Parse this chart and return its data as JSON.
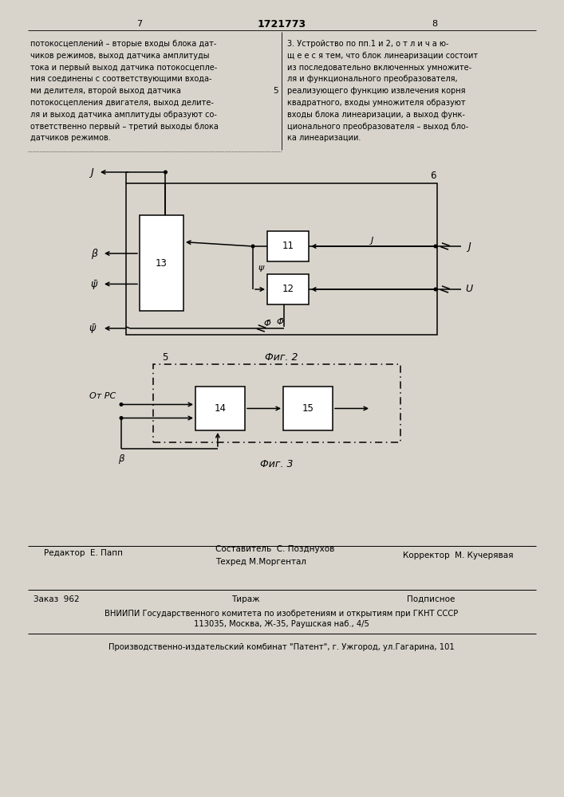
{
  "page_left": "7",
  "page_center": "1721773",
  "page_right": "8",
  "text_left": "потокосцеплений – вторые входы блока дат-\nчиков режимов, выход датчика амплитуды\nтока и первый выход датчика потокосцепле-\nния соединены с соответствующими входа-\nми делителя, второй выход датчика 5\nпотокосцепления двигателя, выход делите-\nля и выход датчика амплитуды образуют со-\nответственно первый – третий выходы блока\nдатчиков режимов.",
  "text_right": "3. Устройство по пп.1 и 2, о т л и ч а ю-\nщ е е с я тем, что блок линеаризации состоит\nиз последовательно включенных умножите-\nля и функционального преобразователя,\nреализующего функцию извлечения корня\nквадратного, входы умножителя образуют\nвходы блока линеаризации, а выход функ-\nционального преобразователя – выход бло-\nка линеаризации.",
  "bg_color": "#d8d4cb"
}
